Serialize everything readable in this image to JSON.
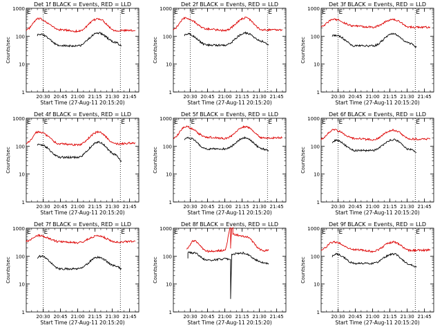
{
  "figure": {
    "title": "",
    "start_time_label": "Start Time (27-Aug-11 20:15:20)"
  },
  "colors": {
    "events": "#000000",
    "lld": "#dd0000",
    "axis": "#000000"
  },
  "chart_data": [
    {
      "type": "line",
      "title": "Det 1f BLACK = Events, RED = LLD",
      "ylabel": "Counts/sec",
      "xlabel": "Start Time (27-Aug-11 20:15:20)",
      "y_scale": "log",
      "ylim": [
        1,
        1000
      ],
      "yticks": [
        "1",
        "10",
        "100",
        "1000"
      ],
      "xticks": [
        "20:30",
        "20:45",
        "21:00",
        "21:15",
        "21:30",
        "21:45"
      ],
      "xlim": [
        "20:15:20",
        "21:53:00"
      ],
      "markers": [
        {
          "x": "20:30",
          "label": "E"
        },
        {
          "x": "21:37",
          "label": "E"
        }
      ],
      "series": [
        {
          "name": "LLD",
          "color": "#dd0000",
          "x": [
            "20:15:20",
            "20:26",
            "20:45",
            "21:00",
            "21:18",
            "21:33",
            "21:50"
          ],
          "y": [
            170,
            420,
            170,
            150,
            420,
            160,
            160
          ]
        },
        {
          "name": "Events",
          "color": "#000000",
          "x": [
            "20:25",
            "20:28",
            "20:45",
            "21:00",
            "21:18",
            "21:33",
            "21:38"
          ],
          "y": [
            110,
            115,
            45,
            45,
            130,
            60,
            45
          ]
        }
      ]
    },
    {
      "type": "line",
      "title": "Det 2f BLACK = Events, RED = LLD",
      "ylabel": "Counts/sec",
      "xlabel": "Start Time (27-Aug-11 20:15:20)",
      "y_scale": "log",
      "ylim": [
        1,
        1000
      ],
      "yticks": [
        "1",
        "10",
        "100",
        "1000"
      ],
      "xticks": [
        "20:30",
        "20:45",
        "21:00",
        "21:15",
        "21:30",
        "21:45"
      ],
      "xlim": [
        "20:15:20",
        "21:53:00"
      ],
      "markers": [
        {
          "x": "20:30",
          "label": "E"
        },
        {
          "x": "21:37",
          "label": "E"
        }
      ],
      "series": [
        {
          "name": "LLD",
          "color": "#dd0000",
          "x": [
            "20:15:20",
            "20:26",
            "20:45",
            "21:00",
            "21:18",
            "21:33",
            "21:50"
          ],
          "y": [
            180,
            450,
            180,
            160,
            450,
            170,
            170
          ]
        },
        {
          "name": "Events",
          "color": "#000000",
          "x": [
            "20:25",
            "20:28",
            "20:45",
            "21:00",
            "21:18",
            "21:33",
            "21:38"
          ],
          "y": [
            110,
            120,
            48,
            48,
            130,
            65,
            48
          ]
        }
      ]
    },
    {
      "type": "line",
      "title": "Det 3f BLACK = Events, RED = LLD",
      "ylabel": "Counts/sec",
      "xlabel": "Start Time (27-Aug-11 20:15:20)",
      "y_scale": "log",
      "ylim": [
        1,
        1000
      ],
      "yticks": [
        "1",
        "10",
        "100",
        "1000"
      ],
      "xticks": [
        "20:30",
        "20:45",
        "21:00",
        "21:15",
        "21:30",
        "21:45"
      ],
      "xlim": [
        "20:15:20",
        "21:53:00"
      ],
      "markers": [
        {
          "x": "20:30",
          "label": "E"
        },
        {
          "x": "21:37",
          "label": "E"
        }
      ],
      "series": [
        {
          "name": "LLD",
          "color": "#dd0000",
          "x": [
            "20:15:20",
            "20:26",
            "20:45",
            "21:00",
            "21:18",
            "21:33",
            "21:50"
          ],
          "y": [
            230,
            400,
            230,
            210,
            400,
            210,
            210
          ]
        },
        {
          "name": "Events",
          "color": "#000000",
          "x": [
            "20:25",
            "20:28",
            "20:45",
            "21:00",
            "21:18",
            "21:33",
            "21:38"
          ],
          "y": [
            105,
            110,
            45,
            45,
            120,
            55,
            40
          ]
        }
      ]
    },
    {
      "type": "line",
      "title": "Det 4f BLACK = Events, RED = LLD",
      "ylabel": "Counts/sec",
      "xlabel": "Start Time (27-Aug-11 20:15:20)",
      "y_scale": "log",
      "ylim": [
        1,
        1000
      ],
      "yticks": [
        "1",
        "10",
        "100",
        "1000"
      ],
      "xticks": [
        "20:30",
        "20:45",
        "21:00",
        "21:15",
        "21:30",
        "21:45"
      ],
      "xlim": [
        "20:15:20",
        "21:53:00"
      ],
      "markers": [
        {
          "x": "20:30",
          "label": "E"
        },
        {
          "x": "21:37",
          "label": "E"
        }
      ],
      "series": [
        {
          "name": "LLD",
          "color": "#dd0000",
          "x": [
            "20:15:20",
            "20:26",
            "20:45",
            "21:00",
            "21:18",
            "21:33",
            "21:50"
          ],
          "y": [
            130,
            330,
            120,
            110,
            320,
            120,
            130
          ]
        },
        {
          "name": "Events",
          "color": "#000000",
          "x": [
            "20:25",
            "20:28",
            "20:45",
            "21:00",
            "21:18",
            "21:33",
            "21:38"
          ],
          "y": [
            115,
            110,
            40,
            40,
            140,
            50,
            30
          ]
        }
      ]
    },
    {
      "type": "line",
      "title": "Det 5f BLACK = Events, RED = LLD",
      "ylabel": "Counts/sec",
      "xlabel": "Start Time (27-Aug-11 20:15:20)",
      "y_scale": "log",
      "ylim": [
        1,
        1000
      ],
      "yticks": [
        "1",
        "10",
        "100",
        "1000"
      ],
      "xticks": [
        "20:30",
        "20:45",
        "21:00",
        "21:15",
        "21:30",
        "21:45"
      ],
      "xlim": [
        "20:15:20",
        "21:53:00"
      ],
      "markers": [
        {
          "x": "20:30",
          "label": "E"
        },
        {
          "x": "21:37",
          "label": "E"
        }
      ],
      "series": [
        {
          "name": "LLD",
          "color": "#dd0000",
          "x": [
            "20:15:20",
            "20:26",
            "20:45",
            "21:00",
            "21:18",
            "21:33",
            "21:50"
          ],
          "y": [
            200,
            500,
            210,
            190,
            500,
            200,
            200
          ]
        },
        {
          "name": "Events",
          "color": "#000000",
          "x": [
            "20:25",
            "20:28",
            "20:45",
            "21:00",
            "21:18",
            "21:33",
            "21:38"
          ],
          "y": [
            180,
            200,
            80,
            80,
            200,
            80,
            70
          ]
        }
      ]
    },
    {
      "type": "line",
      "title": "Det 6f BLACK = Events, RED = LLD",
      "ylabel": "Counts/sec",
      "xlabel": "Start Time (27-Aug-11 20:15:20)",
      "y_scale": "log",
      "ylim": [
        1,
        1000
      ],
      "yticks": [
        "1",
        "10",
        "100",
        "1000"
      ],
      "xticks": [
        "20:30",
        "20:45",
        "21:00",
        "21:15",
        "21:30",
        "21:45"
      ],
      "xlim": [
        "20:15:20",
        "21:53:00"
      ],
      "markers": [
        {
          "x": "20:30",
          "label": "E"
        },
        {
          "x": "21:37",
          "label": "E"
        }
      ],
      "series": [
        {
          "name": "LLD",
          "color": "#dd0000",
          "x": [
            "20:15:20",
            "20:26",
            "20:45",
            "21:00",
            "21:18",
            "21:33",
            "21:50"
          ],
          "y": [
            180,
            380,
            190,
            170,
            380,
            180,
            180
          ]
        },
        {
          "name": "Events",
          "color": "#000000",
          "x": [
            "20:25",
            "20:28",
            "20:45",
            "21:00",
            "21:18",
            "21:33",
            "21:38"
          ],
          "y": [
            140,
            160,
            70,
            70,
            170,
            75,
            60
          ]
        }
      ]
    },
    {
      "type": "line",
      "title": "Det 7f BLACK = Events, RED = LLD",
      "ylabel": "Counts/sec",
      "xlabel": "Start Time (27-Aug-11 20:15:20)",
      "y_scale": "log",
      "ylim": [
        1,
        1000
      ],
      "yticks": [
        "1",
        "10",
        "100",
        "1000"
      ],
      "xticks": [
        "20:30",
        "20:45",
        "21:00",
        "21:15",
        "21:30",
        "21:45"
      ],
      "xlim": [
        "20:15:20",
        "21:53:00"
      ],
      "markers": [
        {
          "x": "20:30",
          "label": "E"
        },
        {
          "x": "21:37",
          "label": "E"
        }
      ],
      "series": [
        {
          "name": "LLD",
          "color": "#dd0000",
          "x": [
            "20:15:20",
            "20:26",
            "20:45",
            "21:00",
            "21:18",
            "21:33",
            "21:50"
          ],
          "y": [
            350,
            550,
            330,
            300,
            540,
            320,
            340
          ]
        },
        {
          "name": "Events",
          "color": "#000000",
          "x": [
            "20:25",
            "20:28",
            "20:45",
            "21:00",
            "21:18",
            "21:33",
            "21:38"
          ],
          "y": [
            90,
            100,
            35,
            35,
            90,
            45,
            35
          ]
        }
      ]
    },
    {
      "type": "line",
      "title": "Det 8f BLACK = Events, RED = LLD",
      "ylabel": "Counts/sec",
      "xlabel": "Start Time (27-Aug-11 20:15:20)",
      "y_scale": "log",
      "ylim": [
        1,
        1000
      ],
      "yticks": [
        "1",
        "10",
        "100",
        "1000"
      ],
      "xticks": [
        "20:30",
        "20:45",
        "21:00",
        "21:15",
        "21:30",
        "21:45"
      ],
      "xlim": [
        "20:15:20",
        "21:53:00"
      ],
      "markers": [],
      "series": [
        {
          "name": "LLD",
          "color": "#dd0000",
          "x": [
            "20:27",
            "20:33",
            "20:45",
            "21:00",
            "21:05",
            "21:05",
            "21:05",
            "21:06",
            "21:07",
            "21:07",
            "21:18",
            "21:33",
            "21:38"
          ],
          "y": [
            190,
            350,
            150,
            160,
            1000,
            200,
            220,
            1000,
            1000,
            600,
            500,
            160,
            160
          ]
        },
        {
          "name": "Events",
          "color": "#000000",
          "x": [
            "20:28",
            "20:28",
            "20:33",
            "20:45",
            "21:00",
            "21:05",
            "21:05",
            "21:06",
            "21:15",
            "21:33",
            "21:38"
          ],
          "y": [
            90,
            140,
            130,
            70,
            80,
            80,
            3,
            120,
            130,
            60,
            55
          ]
        }
      ]
    },
    {
      "type": "line",
      "title": "Det 9f BLACK = Events, RED = LLD",
      "ylabel": "Counts/sec",
      "xlabel": "Start Time (27-Aug-11 20:15:20)",
      "y_scale": "log",
      "ylim": [
        1,
        1000
      ],
      "yticks": [
        "1",
        "10",
        "100",
        "1000"
      ],
      "xticks": [
        "20:30",
        "20:45",
        "21:00",
        "21:15",
        "21:30",
        "21:45"
      ],
      "xlim": [
        "20:15:20",
        "21:53:00"
      ],
      "markers": [
        {
          "x": "20:30",
          "label": "E"
        },
        {
          "x": "21:37",
          "label": "E"
        }
      ],
      "series": [
        {
          "name": "LLD",
          "color": "#dd0000",
          "x": [
            "20:15:20",
            "20:26",
            "20:45",
            "21:00",
            "21:18",
            "21:33",
            "21:50"
          ],
          "y": [
            170,
            320,
            170,
            150,
            320,
            160,
            165
          ]
        },
        {
          "name": "Events",
          "color": "#000000",
          "x": [
            "20:25",
            "20:28",
            "20:45",
            "21:00",
            "21:18",
            "21:33",
            "21:38"
          ],
          "y": [
            100,
            120,
            55,
            55,
            120,
            50,
            40
          ]
        }
      ]
    }
  ]
}
